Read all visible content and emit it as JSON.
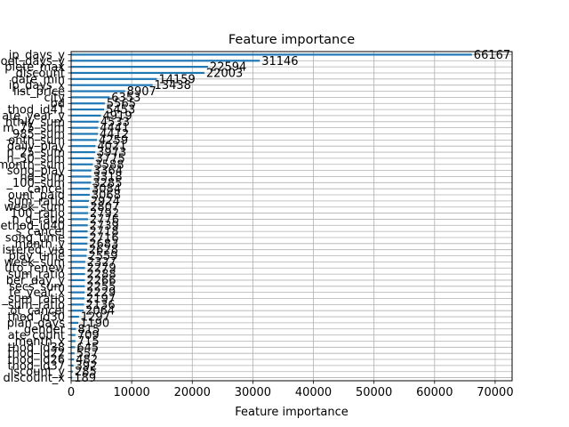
{
  "chart_data": {
    "type": "bar",
    "orientation": "horizontal",
    "title": "Feature importance",
    "xlabel": "Feature importance",
    "ylabel": "",
    "xlim": [
      0,
      72800
    ],
    "xticks": [
      0,
      10000,
      20000,
      30000,
      40000,
      50000,
      60000,
      70000
    ],
    "grid": true,
    "bar_color": "#1f77b4",
    "features": [
      "ip_days_y",
      "oet_days_y",
      "plete_max",
      "discount",
      "date_min",
      "ip_days_x",
      "list_price",
      "city",
      "bd",
      "thod_id41",
      "ate_year_y",
      "nthly_sum",
      "m_75_sum",
      "_985_sum",
      "onth_sum",
      "daily_play",
      "n_25_sum",
      "n_50_sum",
      "month_sum",
      "song_play",
      "nq_sum",
      "_100_sum",
      "_cancel",
      "ount_paid",
      "sum_ratio",
      "week_sum",
      "100_ratio",
      "n_d_ratio",
      "ethod_id40",
      "s_cancel",
      "song_time",
      "_month_y",
      "istered_via",
      "play_time",
      "week_sum",
      "uto_renew",
      "sum_ratio",
      "ber_day_y",
      "secs_sum",
      "te_year_x",
      "_sum_ratio",
      "sum_ratio",
      "ot_cancel",
      "thod_id30",
      "plan_days",
      "gender",
      "ate_count",
      "_month_x",
      "thod_id38",
      "thod_id22",
      "thod_id26",
      "thod_id37",
      "iscount_y",
      "discount_x"
    ],
    "values": [
      66167,
      31146,
      22594,
      22003,
      14159,
      13438,
      8907,
      6353,
      5565,
      5453,
      4919,
      4533,
      4441,
      4412,
      4259,
      4021,
      3973,
      3775,
      3588,
      3364,
      3318,
      3285,
      3084,
      3068,
      2924,
      2807,
      2792,
      2776,
      2739,
      2718,
      2716,
      2683,
      2628,
      2559,
      2327,
      2279,
      2288,
      2266,
      2255,
      2229,
      2197,
      2136,
      2064,
      1297,
      1190,
      815,
      709,
      715,
      645,
      557,
      482,
      392,
      285,
      189
    ]
  }
}
